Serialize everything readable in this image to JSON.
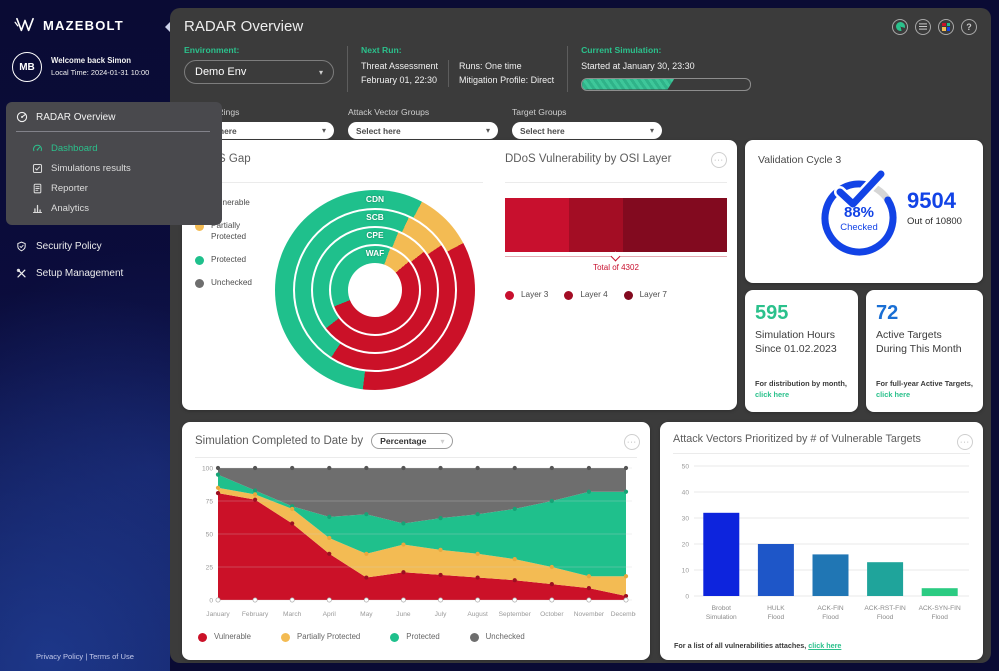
{
  "brand": {
    "name": "MAZEBOLT"
  },
  "colors": {
    "accent_green": "#2bc18c",
    "vulnerable_red": "#cb1128",
    "partial_yellow": "#f3bb53",
    "protected_green": "#1fc08c",
    "unchecked_gray": "#6e6e6e",
    "blue": "#1243e6"
  },
  "sidebar": {
    "avatar": "MB",
    "welcome": "Welcome back Simon",
    "local_time": "Local Time: 2024-01-31 10:00",
    "group_label": "RADAR Overview",
    "group_items": [
      {
        "label": "Dashboard",
        "icon": "dashboard-gauge-icon",
        "active": true
      },
      {
        "label": "Simulations results",
        "icon": "simulations-icon",
        "active": false
      },
      {
        "label": "Reporter",
        "icon": "reporter-icon",
        "active": false
      },
      {
        "label": "Analytics",
        "icon": "analytics-icon",
        "active": false
      }
    ],
    "items": [
      {
        "label": "Security Policy",
        "icon": "shield-icon"
      },
      {
        "label": "Setup Management",
        "icon": "wrench-icon"
      }
    ],
    "footer": "Privacy Policy | Terms of Use"
  },
  "header": {
    "title": "RADAR Overview",
    "environment": {
      "label": "Environment:",
      "value": "Demo Env"
    },
    "next_run": {
      "label": "Next Run:",
      "line1": "Threat Assessment",
      "line2": "February 01, 22:30",
      "runs": "Runs: One time",
      "mitigation": "Mitigation Profile: Direct"
    },
    "current_simulation": {
      "label": "Current Simulation:",
      "text": "Started at January 30, 23:30",
      "progress_pct": 55
    }
  },
  "filters": [
    {
      "label": "Security Rings",
      "value": "Select here"
    },
    {
      "label": "Attack Vector Groups",
      "value": "Select here"
    },
    {
      "label": "Target Groups",
      "value": "Select here"
    }
  ],
  "gap_card": {
    "title": "DDoS Gap"
  },
  "osi_card": {
    "title": "DDoS Vulnerability by OSI Layer",
    "total": "Total of 4302"
  },
  "validation_card": {
    "title": "Validation Cycle 3",
    "pct": "88%",
    "pct_value": 88,
    "pct_sub": "Checked",
    "value": "9504",
    "out_of": "Out of 10800"
  },
  "sim_hours_card": {
    "value": "595",
    "label": "Simulation Hours Since 01.02.2023",
    "note": "For distribution by month,",
    "link": "click here"
  },
  "targets_card": {
    "value": "72",
    "label": "Active Targets During This Month",
    "note": "For full-year Active Targets,",
    "link": "click here"
  },
  "sim_completed_card": {
    "title": "Simulation Completed to Date by",
    "dropdown_value": "Percentage"
  },
  "attack_card": {
    "title": "Attack Vectors Prioritized by # of Vulnerable Targets",
    "note": "For a list of all vulnerabilities attaches,",
    "link": "click here"
  },
  "chart_data": [
    {
      "id": "ddos_gap_sunburst",
      "type": "pie",
      "variant": "sunburst",
      "title": "DDoS Gap",
      "legend": [
        "Vulnerable",
        "Partially Protected",
        "Protected",
        "Unchecked"
      ],
      "status_colors": {
        "Vulnerable": "#cb1128",
        "Partially Protected": "#f3bb53",
        "Protected": "#1fc08c",
        "Unchecked": "#6e6e6e"
      },
      "rings_outer_to_inner": [
        "CDN",
        "SCB",
        "CPE",
        "WAF"
      ],
      "segments_deg_from_top_cw": {
        "CDN": [
          {
            "status": "Partially Protected",
            "from": 28,
            "to": 62
          },
          {
            "status": "Vulnerable",
            "from": 62,
            "to": 187
          },
          {
            "status": "Protected",
            "from": 187,
            "to": 388
          }
        ],
        "SCB": [
          {
            "status": "Partially Protected",
            "from": 25,
            "to": 56
          },
          {
            "status": "Vulnerable",
            "from": 56,
            "to": 213
          },
          {
            "status": "Protected",
            "from": 213,
            "to": 385
          }
        ],
        "CPE": [
          {
            "status": "Partially Protected",
            "from": 22,
            "to": 52
          },
          {
            "status": "Vulnerable",
            "from": 52,
            "to": 232
          },
          {
            "status": "Protected",
            "from": 232,
            "to": 382
          }
        ],
        "WAF": [
          {
            "status": "Partially Protected",
            "from": 20,
            "to": 50
          },
          {
            "status": "Vulnerable",
            "from": 50,
            "to": 248
          },
          {
            "status": "Protected",
            "from": 248,
            "to": 380
          }
        ]
      }
    },
    {
      "id": "osi_layers",
      "type": "bar",
      "stacked": true,
      "orientation": "horizontal",
      "title": "DDoS Vulnerability by OSI Layer",
      "series": [
        {
          "name": "Layer 3",
          "pct": 29,
          "color": "#c8102e"
        },
        {
          "name": "Layer 4",
          "pct": 24,
          "color": "#a30d24"
        },
        {
          "name": "Layer 7",
          "pct": 47,
          "color": "#820a1f"
        }
      ],
      "total_label": "Total of 4302",
      "total_value": 4302
    },
    {
      "id": "simulation_completed",
      "type": "area",
      "stacked": true,
      "percent": true,
      "title": "Simulation Completed to Date by Percentage",
      "categories": [
        "January",
        "February",
        "March",
        "April",
        "May",
        "June",
        "July",
        "August",
        "September",
        "October",
        "November",
        "December"
      ],
      "series": [
        {
          "name": "Vulnerable",
          "color": "#cb1128",
          "values": [
            81,
            76,
            58,
            35,
            17,
            21,
            19,
            17,
            15,
            12,
            9,
            3
          ]
        },
        {
          "name": "Partially Protected",
          "color": "#f3bb53",
          "values": [
            4,
            4,
            11,
            12,
            18,
            21,
            19,
            18,
            16,
            13,
            9,
            15
          ]
        },
        {
          "name": "Protected",
          "color": "#1fc08c",
          "values": [
            10,
            3,
            2,
            16,
            30,
            16,
            24,
            30,
            38,
            50,
            64,
            64
          ]
        },
        {
          "name": "Unchecked",
          "color": "#6e6e6e",
          "values": [
            5,
            17,
            29,
            37,
            35,
            42,
            38,
            35,
            31,
            25,
            18,
            18
          ]
        }
      ],
      "ylim": [
        0,
        100
      ],
      "yticks": [
        0,
        25,
        50,
        75,
        100
      ]
    },
    {
      "id": "attack_vectors",
      "type": "bar",
      "title": "Attack Vectors Prioritized by # of Vulnerable Targets",
      "categories": [
        "Brobot Simulation",
        "HULK Flood",
        "ACK-FIN Flood",
        "ACK-RST-FIN Flood",
        "ACK-SYN-FIN Flood"
      ],
      "values": [
        32,
        20,
        16,
        13,
        3
      ],
      "colors": [
        "#0d24dd",
        "#1e56c8",
        "#2076b4",
        "#1fa49b",
        "#2bcb82"
      ],
      "ylim": [
        0,
        50
      ],
      "yticks": [
        0,
        10,
        20,
        30,
        40,
        50
      ]
    }
  ]
}
